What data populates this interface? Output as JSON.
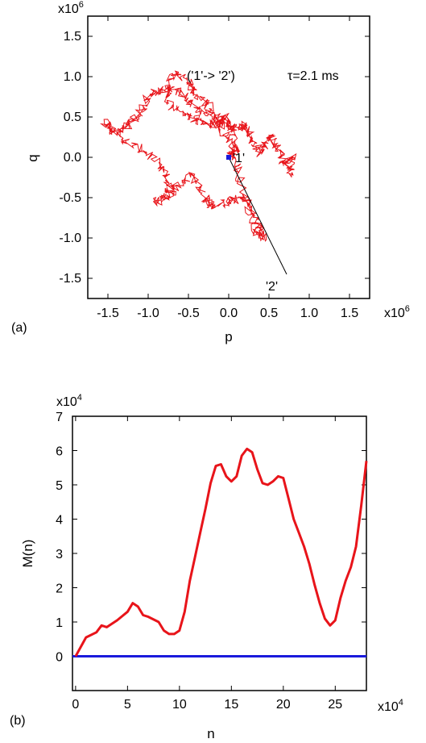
{
  "chart_data": [
    {
      "type": "line",
      "panel_label": "(a)",
      "xlabel": "p",
      "ylabel": "q",
      "x_multiplier": "x10",
      "x_multiplier_exp": "6",
      "y_multiplier": "x10",
      "y_multiplier_exp": "6",
      "xlim": [
        -1.75,
        1.75
      ],
      "ylim": [
        -1.75,
        1.75
      ],
      "xticks": [
        "-1.5",
        "-1.0",
        "-0.5",
        "0.0",
        "0.5",
        "1.0",
        "1.5"
      ],
      "yticks": [
        "-1.5",
        "-1.0",
        "-0.5",
        "0.0",
        "0.5",
        "1.0",
        "1.5"
      ],
      "annotation_prefix": "('1'-> '2')",
      "annotation_tau": "τ=2.1 ms",
      "point_labels": [
        "'1'",
        "'2'"
      ],
      "colors": {
        "trajectory": "#e8141a",
        "segment": "#000000",
        "start": "#1a1adb"
      },
      "series": [
        {
          "values_x": [
            0.0,
            0.1,
            0.05,
            -0.2,
            -0.45,
            -0.6,
            -0.8,
            -1.0,
            -1.1,
            -1.25,
            -1.4,
            -1.55,
            -1.3,
            -1.0,
            -0.8,
            -0.7,
            -0.9,
            -0.7,
            -0.45,
            -0.3,
            -0.2,
            0.0,
            0.2,
            0.35,
            0.45,
            0.3,
            0.15,
            0.05,
            -0.05,
            -0.2,
            -0.4,
            -0.5,
            -0.7,
            -0.8,
            -0.55,
            -0.35,
            -0.15,
            -0.05,
            0.05,
            0.2,
            0.3,
            0.4,
            0.5,
            0.6,
            0.7,
            0.8,
            0.75
          ],
          "values_y": [
            0.0,
            0.1,
            0.35,
            0.5,
            0.65,
            0.8,
            0.85,
            0.75,
            0.55,
            0.4,
            0.3,
            0.45,
            0.2,
            0.05,
            -0.2,
            -0.45,
            -0.55,
            -0.4,
            -0.2,
            -0.5,
            -0.6,
            -0.55,
            -0.5,
            -0.8,
            -1.0,
            -0.9,
            -0.3,
            0.1,
            0.3,
            0.6,
            0.75,
            0.95,
            1.05,
            0.7,
            0.55,
            0.45,
            0.4,
            0.5,
            0.35,
            0.4,
            0.2,
            0.05,
            0.25,
            0.15,
            -0.1,
            0.0,
            -0.2
          ]
        }
      ],
      "start_point": [
        0.0,
        0.0
      ],
      "segment": {
        "from": [
          0.0,
          0.0
        ],
        "to": [
          0.72,
          -1.45
        ]
      }
    },
    {
      "type": "line",
      "panel_label": "(b)",
      "xlabel": "n",
      "ylabel": "M(n)",
      "x_multiplier": "x10",
      "x_multiplier_exp": "4",
      "y_multiplier": "x10",
      "y_multiplier_exp": "4",
      "xlim": [
        -0.3,
        28
      ],
      "ylim": [
        -1,
        7
      ],
      "xticks": [
        "0",
        "5",
        "10",
        "15",
        "20",
        "25"
      ],
      "yticks": [
        "0",
        "1",
        "2",
        "3",
        "4",
        "5",
        "6",
        "7"
      ],
      "colors": {
        "M": "#e8141a",
        "zero": "#1a1adb"
      },
      "series": [
        {
          "x": [
            0,
            1,
            2,
            2.5,
            3,
            4,
            5,
            5.5,
            6,
            6.5,
            7,
            8,
            8.5,
            9,
            9.5,
            10,
            10.5,
            11,
            11.5,
            12,
            12.5,
            13,
            13.5,
            14,
            14.5,
            15,
            15.5,
            16,
            16.5,
            17,
            17.5,
            18,
            18.5,
            19,
            19.5,
            20,
            20.5,
            21,
            21.5,
            22,
            22.5,
            23,
            23.5,
            24,
            24.5,
            25,
            25.5,
            26,
            26.5,
            27,
            27.5,
            28
          ],
          "y": [
            0.0,
            0.55,
            0.7,
            0.9,
            0.85,
            1.05,
            1.3,
            1.55,
            1.45,
            1.2,
            1.15,
            1.0,
            0.75,
            0.65,
            0.65,
            0.75,
            1.3,
            2.2,
            2.9,
            3.6,
            4.3,
            5.05,
            5.55,
            5.6,
            5.25,
            5.1,
            5.25,
            5.85,
            6.05,
            5.95,
            5.45,
            5.05,
            5.0,
            5.1,
            5.25,
            5.2,
            4.6,
            4.0,
            3.6,
            3.2,
            2.7,
            2.1,
            1.55,
            1.1,
            0.9,
            1.05,
            1.7,
            2.2,
            2.6,
            3.2,
            4.4,
            5.7
          ]
        },
        {
          "x": [
            -0.3,
            28
          ],
          "y": [
            0,
            0
          ]
        }
      ]
    }
  ]
}
